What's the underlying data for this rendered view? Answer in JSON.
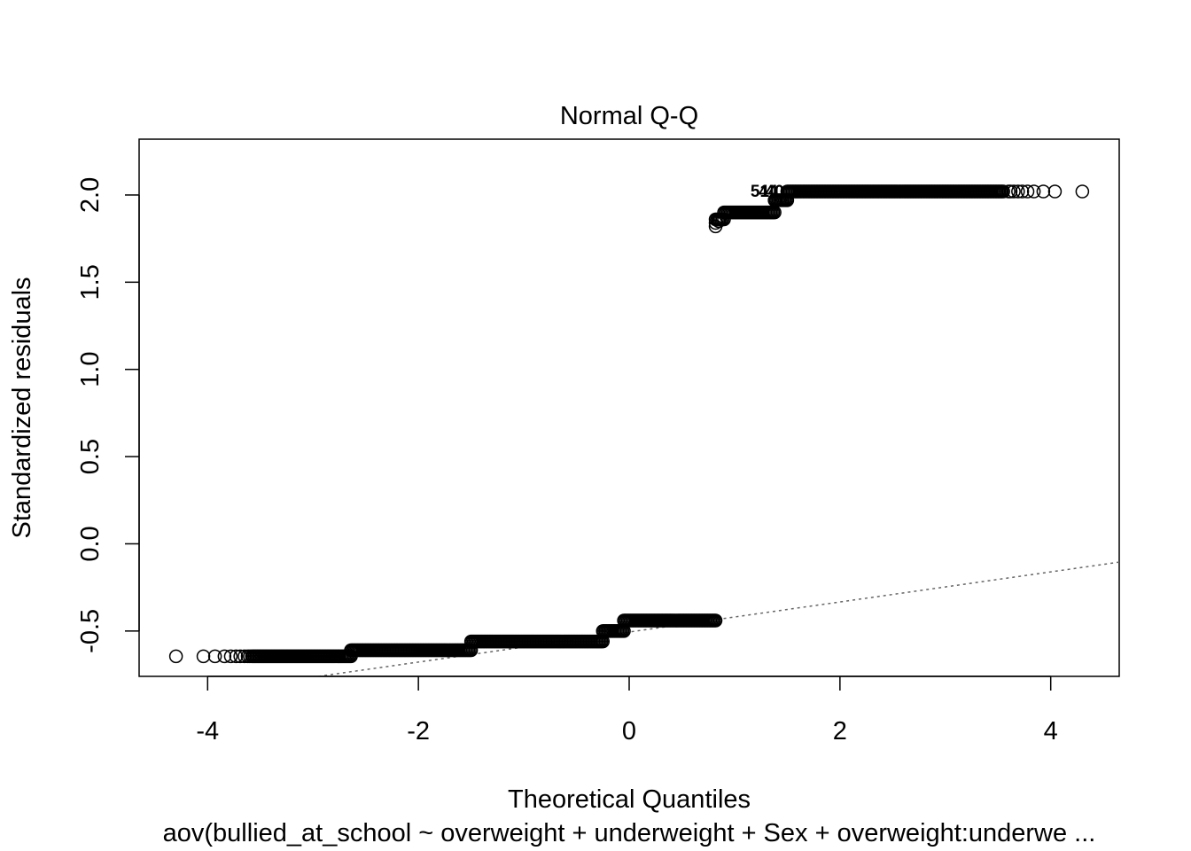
{
  "chart_data": {
    "type": "scatter",
    "title": "Normal Q-Q",
    "xlabel": "Theoretical Quantiles",
    "ylabel": "Standardized residuals",
    "subtitle": "aov(bullied_at_school ~ overweight + underweight + Sex + overweight:underwe ...",
    "xlim": [
      -4.65,
      4.65
    ],
    "ylim": [
      -0.76,
      2.32
    ],
    "xticks": [
      -4,
      -2,
      0,
      2,
      4
    ],
    "xtick_labels": [
      "-4",
      "-2",
      "0",
      "2",
      "4"
    ],
    "yticks": [
      -0.5,
      0.0,
      0.5,
      1.0,
      1.5,
      2.0
    ],
    "ytick_labels": [
      "-0.5",
      "0.0",
      "0.5",
      "1.0",
      "1.5",
      "2.0"
    ],
    "grid": false,
    "marker": "open-circle",
    "reference_line": {
      "style": "dotted",
      "color": "#666666",
      "points": [
        [
          -2.95,
          -0.76
        ],
        [
          4.65,
          -0.105
        ]
      ]
    },
    "point_labels": [
      {
        "text": "51",
        "x": 1.24,
        "y": 2.02
      },
      {
        "text": "44",
        "x": 1.32,
        "y": 2.02
      },
      {
        "text": "40",
        "x": 1.38,
        "y": 2.02
      }
    ],
    "segments": [
      {
        "x_start": -3.58,
        "x_end": -2.64,
        "y": -0.645
      },
      {
        "x_start": -2.64,
        "x_end": -1.5,
        "y": -0.61
      },
      {
        "x_start": -1.5,
        "x_end": -0.25,
        "y": -0.56
      },
      {
        "x_start": -0.25,
        "x_end": -0.05,
        "y": -0.5
      },
      {
        "x_start": -0.05,
        "x_end": 0.82,
        "y": -0.44
      },
      {
        "x_start": 0.82,
        "x_end": 0.9,
        "y": 1.86
      },
      {
        "x_start": 0.9,
        "x_end": 1.38,
        "y": 1.9
      },
      {
        "x_start": 1.38,
        "x_end": 1.5,
        "y": 1.97
      },
      {
        "x_start": 1.5,
        "x_end": 3.55,
        "y": 2.02
      }
    ],
    "points": [
      {
        "x": -4.3,
        "y": -0.645
      },
      {
        "x": -4.04,
        "y": -0.645
      },
      {
        "x": -3.93,
        "y": -0.645
      },
      {
        "x": -3.84,
        "y": -0.645
      },
      {
        "x": -3.78,
        "y": -0.645
      },
      {
        "x": -3.73,
        "y": -0.645
      },
      {
        "x": -3.69,
        "y": -0.645
      },
      {
        "x": -3.65,
        "y": -0.645
      },
      {
        "x": -3.62,
        "y": -0.645
      },
      {
        "x": -3.6,
        "y": -0.645
      },
      {
        "x": 0.82,
        "y": 1.82
      },
      {
        "x": 0.82,
        "y": 1.84
      },
      {
        "x": 0.85,
        "y": 1.85
      },
      {
        "x": 3.6,
        "y": 2.02
      },
      {
        "x": 3.62,
        "y": 2.02
      },
      {
        "x": 3.65,
        "y": 2.02
      },
      {
        "x": 3.69,
        "y": 2.02
      },
      {
        "x": 3.73,
        "y": 2.02
      },
      {
        "x": 3.78,
        "y": 2.02
      },
      {
        "x": 3.84,
        "y": 2.02
      },
      {
        "x": 3.93,
        "y": 2.02
      },
      {
        "x": 4.04,
        "y": 2.02
      },
      {
        "x": 4.3,
        "y": 2.02
      }
    ]
  }
}
